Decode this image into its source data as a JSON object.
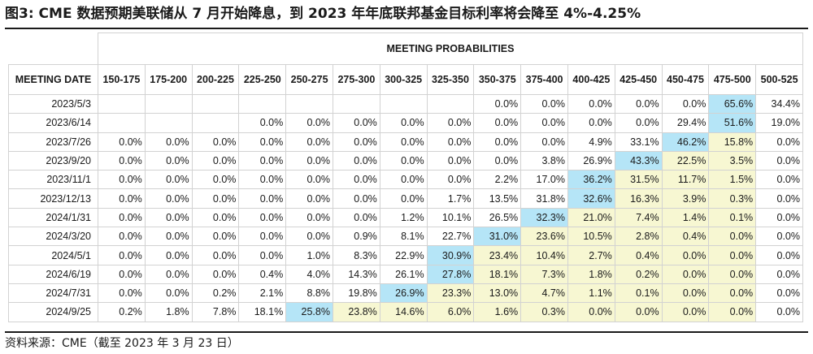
{
  "title": "图3:   CME 数据预期美联储从 7 月开始降息，到 2023 年年底联邦基金目标利率将会降至 4%-4.25%",
  "source": "资料来源：CME（截至 2023 年 3 月 23 日）",
  "table": {
    "group_header": "MEETING PROBABILITIES",
    "date_header": "MEETING DATE",
    "columns": [
      "150-175",
      "175-200",
      "200-225",
      "225-250",
      "250-275",
      "275-300",
      "300-325",
      "325-350",
      "350-375",
      "375-400",
      "400-425",
      "425-450",
      "450-475",
      "475-500",
      "500-525"
    ],
    "rows": [
      {
        "date": "2023/5/3",
        "cells": [
          "",
          "",
          "",
          "",
          "",
          "",
          "",
          "",
          "0.0%",
          "0.0%",
          "0.0%",
          "0.0%",
          "0.0%",
          "65.6%",
          "34.4%"
        ],
        "hi": 13,
        "mid": []
      },
      {
        "date": "2023/6/14",
        "cells": [
          "",
          "",
          "",
          "0.0%",
          "0.0%",
          "0.0%",
          "0.0%",
          "0.0%",
          "0.0%",
          "0.0%",
          "0.0%",
          "0.0%",
          "29.4%",
          "51.6%",
          "19.0%"
        ],
        "hi": 13,
        "mid": []
      },
      {
        "date": "2023/7/26",
        "cells": [
          "0.0%",
          "0.0%",
          "0.0%",
          "0.0%",
          "0.0%",
          "0.0%",
          "0.0%",
          "0.0%",
          "0.0%",
          "0.0%",
          "4.9%",
          "33.1%",
          "46.2%",
          "15.8%",
          "0.0%"
        ],
        "hi": 12,
        "mid": [
          13
        ]
      },
      {
        "date": "2023/9/20",
        "cells": [
          "0.0%",
          "0.0%",
          "0.0%",
          "0.0%",
          "0.0%",
          "0.0%",
          "0.0%",
          "0.0%",
          "0.0%",
          "3.8%",
          "26.9%",
          "43.3%",
          "22.5%",
          "3.5%",
          "0.0%"
        ],
        "hi": 11,
        "mid": [
          12,
          13
        ]
      },
      {
        "date": "2023/11/1",
        "cells": [
          "0.0%",
          "0.0%",
          "0.0%",
          "0.0%",
          "0.0%",
          "0.0%",
          "0.0%",
          "0.0%",
          "2.2%",
          "17.0%",
          "36.2%",
          "31.5%",
          "11.7%",
          "1.5%",
          "0.0%"
        ],
        "hi": 10,
        "mid": [
          11,
          12,
          13
        ]
      },
      {
        "date": "2023/12/13",
        "cells": [
          "0.0%",
          "0.0%",
          "0.0%",
          "0.0%",
          "0.0%",
          "0.0%",
          "0.0%",
          "1.7%",
          "13.5%",
          "31.8%",
          "32.6%",
          "16.3%",
          "3.9%",
          "0.3%",
          "0.0%"
        ],
        "hi": 10,
        "mid": [
          11,
          12,
          13
        ]
      },
      {
        "date": "2024/1/31",
        "cells": [
          "0.0%",
          "0.0%",
          "0.0%",
          "0.0%",
          "0.0%",
          "0.0%",
          "1.2%",
          "10.1%",
          "26.5%",
          "32.3%",
          "21.0%",
          "7.4%",
          "1.4%",
          "0.1%",
          "0.0%"
        ],
        "hi": 9,
        "mid": [
          10,
          11,
          12,
          13
        ]
      },
      {
        "date": "2024/3/20",
        "cells": [
          "0.0%",
          "0.0%",
          "0.0%",
          "0.0%",
          "0.0%",
          "0.9%",
          "8.1%",
          "22.7%",
          "31.0%",
          "23.6%",
          "10.5%",
          "2.8%",
          "0.4%",
          "0.0%",
          "0.0%"
        ],
        "hi": 8,
        "mid": [
          9,
          10,
          11,
          12,
          13
        ]
      },
      {
        "date": "2024/5/1",
        "cells": [
          "0.0%",
          "0.0%",
          "0.0%",
          "0.0%",
          "1.0%",
          "8.3%",
          "22.9%",
          "30.9%",
          "23.4%",
          "10.4%",
          "2.7%",
          "0.4%",
          "0.0%",
          "0.0%",
          "0.0%"
        ],
        "hi": 7,
        "mid": [
          8,
          9,
          10,
          11,
          12,
          13
        ]
      },
      {
        "date": "2024/6/19",
        "cells": [
          "0.0%",
          "0.0%",
          "0.0%",
          "0.4%",
          "4.0%",
          "14.3%",
          "26.1%",
          "27.8%",
          "18.1%",
          "7.3%",
          "1.8%",
          "0.2%",
          "0.0%",
          "0.0%",
          "0.0%"
        ],
        "hi": 7,
        "mid": [
          8,
          9,
          10,
          11,
          12,
          13
        ]
      },
      {
        "date": "2024/7/31",
        "cells": [
          "0.0%",
          "0.0%",
          "0.2%",
          "2.1%",
          "8.8%",
          "19.8%",
          "26.9%",
          "23.3%",
          "13.0%",
          "4.7%",
          "1.1%",
          "0.1%",
          "0.0%",
          "0.0%",
          "0.0%"
        ],
        "hi": 6,
        "mid": [
          7,
          8,
          9,
          10,
          11,
          12,
          13
        ]
      },
      {
        "date": "2024/9/25",
        "cells": [
          "0.2%",
          "1.8%",
          "7.8%",
          "18.1%",
          "25.8%",
          "23.8%",
          "14.6%",
          "6.0%",
          "1.6%",
          "0.3%",
          "0.0%",
          "0.0%",
          "0.0%",
          "0.0%",
          "0.0%"
        ],
        "hi": 4,
        "mid": [
          5,
          6,
          7,
          8,
          9,
          10,
          11,
          12,
          13
        ]
      }
    ]
  }
}
